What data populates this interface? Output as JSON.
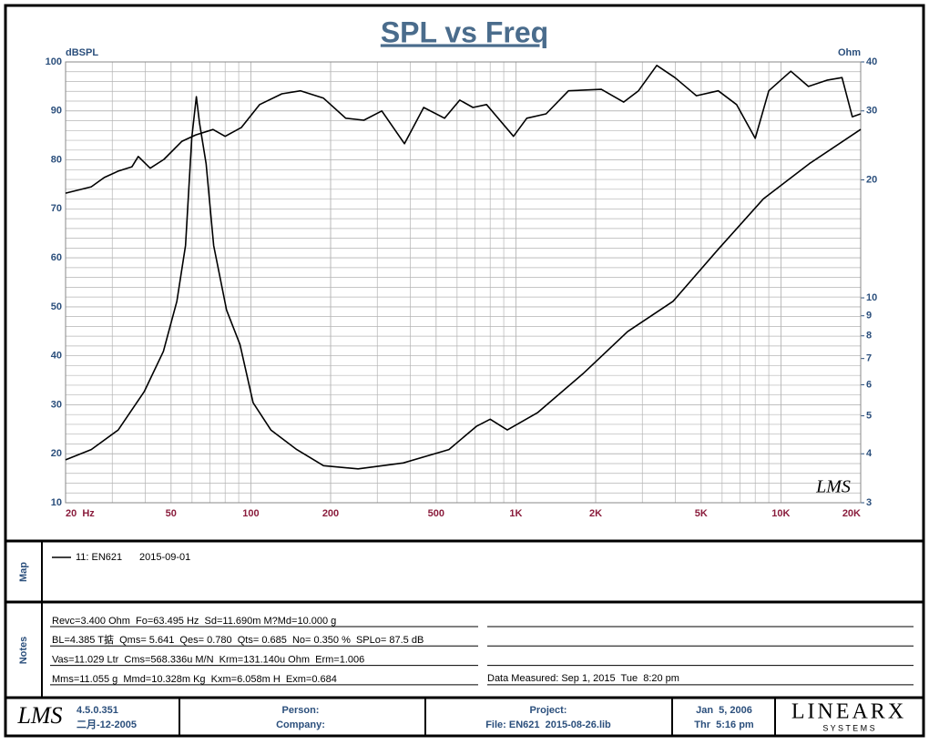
{
  "chart_data": {
    "type": "line",
    "title": "SPL vs Freq",
    "y_label": "dBSPL",
    "y2_label": "Ohm",
    "watermark": "LMS",
    "xlim": [
      20,
      20000
    ],
    "xscale": "log",
    "xticks": [
      {
        "value": 20,
        "label": "20  Hz"
      },
      50,
      100,
      200,
      500,
      {
        "value": 1000,
        "label": "1K"
      },
      {
        "value": 2000,
        "label": "2K"
      },
      {
        "value": 5000,
        "label": "5K"
      },
      {
        "value": 10000,
        "label": "10K"
      },
      {
        "value": 20000,
        "label": "20K"
      }
    ],
    "ylim": [
      10,
      100
    ],
    "yticks": [
      10,
      20,
      30,
      40,
      50,
      60,
      70,
      80,
      90,
      100
    ],
    "y2lim": [
      3,
      40
    ],
    "y2scale": "log",
    "y2ticks": [
      3,
      4,
      5,
      6,
      7,
      8,
      9,
      10,
      20,
      30,
      40
    ],
    "grid": true,
    "legend_date": "2015-09-01",
    "series": [
      {
        "name": "11: EN621",
        "color": "#000000",
        "x": [
          20,
          25,
          28,
          31.6,
          35.6,
          37.6,
          41.7,
          47,
          55,
          62,
          72,
          80,
          92,
          108,
          131,
          154,
          188,
          228,
          267,
          312,
          380,
          449,
          538,
          614,
          689,
          775,
          980,
          1100,
          1300,
          1580,
          2100,
          2550,
          2900,
          3400,
          3980,
          4800,
          5800,
          6800,
          8000,
          9000,
          10900,
          12700,
          15000,
          17000,
          18600,
          20000
        ],
        "values": [
          73.2,
          74.5,
          76.4,
          77.7,
          78.6,
          80.7,
          78.3,
          80.1,
          83.8,
          85.1,
          86.2,
          84.8,
          86.6,
          91.3,
          93.5,
          94.1,
          92.6,
          88.5,
          88.1,
          90.0,
          83.3,
          90.7,
          88.5,
          92.2,
          90.7,
          91.3,
          84.8,
          88.5,
          89.4,
          94.1,
          94.4,
          91.8,
          94.1,
          99.3,
          96.8,
          93.1,
          94.1,
          91.3,
          84.4,
          94.1,
          98.1,
          95.0,
          96.3,
          96.8,
          88.8,
          89.4
        ]
      },
      {
        "color": "#000000",
        "axis": "y2",
        "x": [
          20,
          25,
          31.6,
          39.6,
          46.8,
          52.6,
          56.7,
          59.9,
          62.3,
          64,
          67.8,
          72.4,
          81,
          91,
          102,
          119,
          149,
          188,
          254,
          376,
          559,
          710,
          800,
          928,
          1210,
          1790,
          2640,
          3920,
          5800,
          8600,
          12800,
          20000
        ],
        "values": [
          3.86,
          4.1,
          4.6,
          5.76,
          7.3,
          9.8,
          13.6,
          25.7,
          32.6,
          28,
          22,
          13.6,
          9.3,
          7.6,
          5.4,
          4.6,
          4.1,
          3.73,
          3.66,
          3.79,
          4.1,
          4.7,
          4.9,
          4.6,
          5.1,
          6.4,
          8.2,
          9.8,
          13.3,
          17.9,
          22,
          26.9
        ]
      }
    ]
  },
  "map": {
    "label": "Map"
  },
  "notes": {
    "label": "Notes",
    "lines": [
      "Revc=3.400 Ohm  Fo=63.495 Hz  Sd=11.690m M?Md=10.000 g",
      "BL=4.385 T掂  Qms= 5.641  Qes= 0.780  Qts= 0.685  No= 0.350 %  SPLo= 87.5 dB",
      "Vas=11.029 Ltr  Cms=568.336u M/N  Krm=131.140u Ohm  Erm=1.006",
      "Mms=11.055 g  Mmd=10.328m Kg  Kxm=6.058m H  Exm=0.684"
    ],
    "measured": "Data Measured: Sep 1, 2015  Tue  8:20 pm"
  },
  "footer": {
    "logo": "LMS",
    "version": "4.5.0.351",
    "build_date": "二月-12-2005",
    "person": "Person:",
    "company": "Company:",
    "project": "Project:",
    "file": "File: EN621  2015-08-26.lib",
    "date": "Jan  5, 2006",
    "time": "Thr  5:16 pm",
    "brand": "LINEARX",
    "brand_sub": "S Y S T E M S"
  }
}
